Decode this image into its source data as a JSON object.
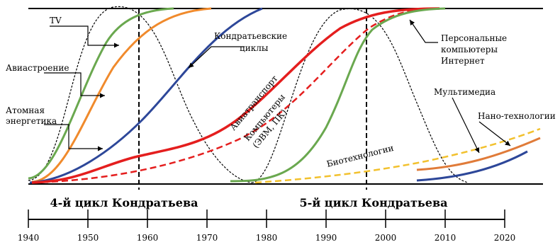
{
  "timeline": {
    "ticks": [
      "1940",
      "1950",
      "1960",
      "1970",
      "1980",
      "1990",
      "2000",
      "2010",
      "2020"
    ]
  },
  "cycles": {
    "cycle4": "4-й цикл Кондратьева",
    "cycle5": "5-й цикл Кондратьева"
  },
  "labels": {
    "tv": "TV",
    "aviation_industry": "Авиастроение",
    "nuclear_line1": "Атомная",
    "nuclear_line2": "энергетика",
    "kondratiev_line1": "Кондратьевские",
    "kondratiev_line2": "циклы",
    "air_transport": "Авиатранспорт",
    "computers_line1": "Компьютеры",
    "computers_line2": "(ЭВМ, ПК)",
    "biotech": "Биотехнологии",
    "pc_line1": "Персональные",
    "pc_line2": "компьютеры",
    "pc_line3": "Интернет",
    "multimedia": "Мультимедиа",
    "nano": "Нано-технологии"
  },
  "colors": {
    "tv": "#6aa84f",
    "aviation_industry": "#f08a2c",
    "nuclear": "#2d4799",
    "air_transport": "#e41e1e",
    "computers": "#e41e1e",
    "pc_internet": "#6aa84f",
    "biotech": "#f2c12e",
    "multimedia": "#e07b39",
    "nano": "#2d4799",
    "kondratiev_wave": "#000000"
  }
}
